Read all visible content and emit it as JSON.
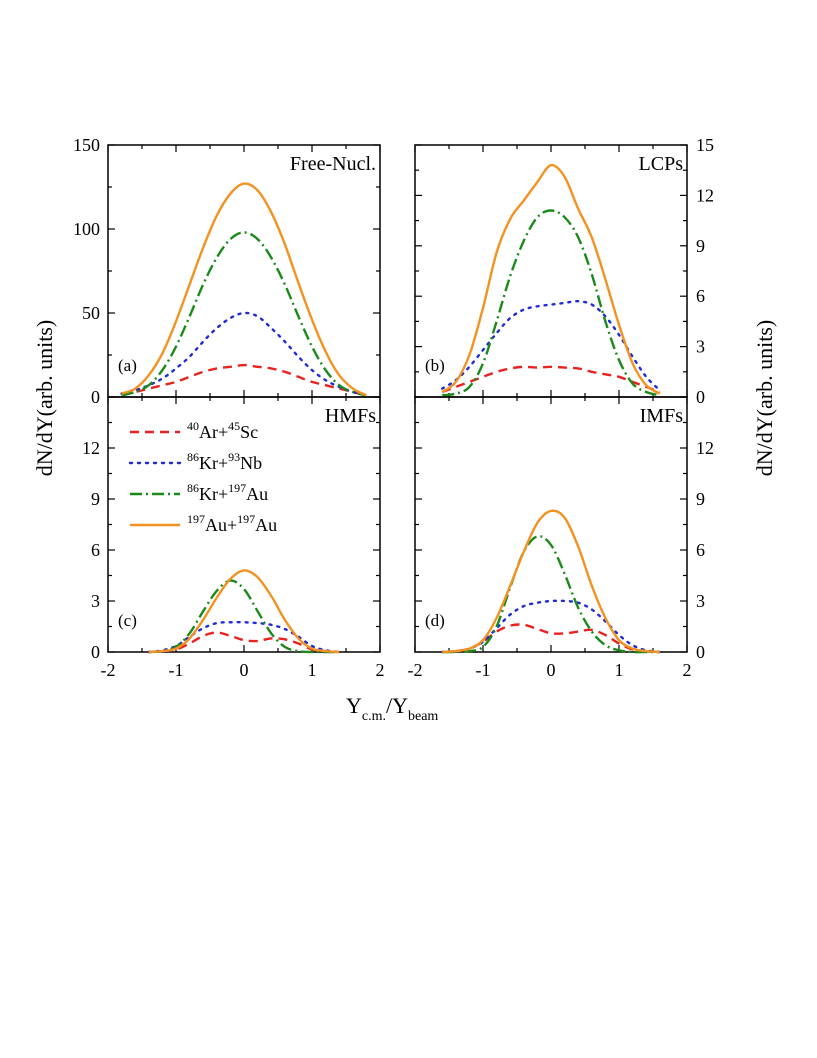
{
  "figure": {
    "xlabel_main": "Y",
    "xlabel_sub_1": "c.m.",
    "xlabel_mid": "/Y",
    "xlabel_sub_2": "beam",
    "ylabel_left": "dN/dY(arb. units)",
    "ylabel_right": "dN/dY(arb. units)"
  },
  "colors": {
    "ArSc": "#e8231f",
    "KrNb": "#1f2cd6",
    "KrAu": "#1b8a1b",
    "AuAu": "#f39221"
  },
  "legend": [
    {
      "key": "ArSc",
      "a1": "40",
      "e1": "Ar+",
      "a2": "45",
      "e2": "Sc"
    },
    {
      "key": "KrNb",
      "a1": "86",
      "e1": "Kr+",
      "a2": "93",
      "e2": "Nb"
    },
    {
      "key": "KrAu",
      "a1": "86",
      "e1": "Kr+",
      "a2": "197",
      "e2": "Au"
    },
    {
      "key": "AuAu",
      "a1": "197",
      "e1": "Au+",
      "a2": "197",
      "e2": "Au"
    }
  ],
  "chart_data": [
    {
      "type": "line",
      "title": "Free-Nucl.",
      "tag": "(a)",
      "xlim": [
        -2,
        2
      ],
      "ylim": [
        0,
        150
      ],
      "xticks": [],
      "yticks": [
        "0",
        "50",
        "100",
        "150"
      ],
      "series": [
        {
          "key": "ArSc",
          "x": [
            -1.8,
            -1.6,
            -1.4,
            -1.2,
            -1.0,
            -0.8,
            -0.6,
            -0.4,
            -0.2,
            0.0,
            0.2,
            0.4,
            0.6,
            0.8,
            1.0,
            1.2,
            1.4,
            1.6,
            1.8
          ],
          "y": [
            2,
            3,
            5,
            7,
            9,
            12,
            15,
            17,
            18,
            19,
            18,
            17,
            15,
            12,
            9,
            7,
            5,
            3,
            1
          ]
        },
        {
          "key": "KrNb",
          "x": [
            -1.8,
            -1.6,
            -1.4,
            -1.2,
            -1.0,
            -0.8,
            -0.6,
            -0.4,
            -0.2,
            0.0,
            0.2,
            0.4,
            0.6,
            0.8,
            1.0,
            1.2,
            1.4,
            1.6,
            1.8
          ],
          "y": [
            2,
            4,
            7,
            11,
            17,
            24,
            33,
            41,
            47,
            50,
            48,
            41,
            33,
            24,
            16,
            10,
            6,
            3,
            1
          ]
        },
        {
          "key": "KrAu",
          "x": [
            -1.8,
            -1.6,
            -1.4,
            -1.2,
            -1.0,
            -0.8,
            -0.6,
            -0.4,
            -0.2,
            0.0,
            0.2,
            0.4,
            0.6,
            0.8,
            1.0,
            1.2,
            1.4,
            1.6,
            1.8
          ],
          "y": [
            1,
            3,
            7,
            16,
            30,
            48,
            67,
            83,
            94,
            98,
            94,
            83,
            67,
            48,
            30,
            16,
            7,
            3,
            1
          ]
        },
        {
          "key": "AuAu",
          "x": [
            -1.8,
            -1.6,
            -1.4,
            -1.2,
            -1.0,
            -0.8,
            -0.6,
            -0.4,
            -0.2,
            0.0,
            0.2,
            0.4,
            0.6,
            0.8,
            1.0,
            1.2,
            1.4,
            1.6,
            1.8
          ],
          "y": [
            2,
            5,
            13,
            26,
            45,
            67,
            89,
            108,
            121,
            127,
            123,
            110,
            91,
            68,
            46,
            27,
            13,
            5,
            1
          ]
        }
      ]
    },
    {
      "type": "line",
      "title": "LCPs",
      "tag": "(b)",
      "xlim": [
        -2,
        2
      ],
      "ylim": [
        0,
        15
      ],
      "xticks": [],
      "yticks": [
        "0",
        "3",
        "6",
        "9",
        "12",
        "15"
      ],
      "series": [
        {
          "key": "ArSc",
          "x": [
            -1.6,
            -1.4,
            -1.2,
            -1.0,
            -0.8,
            -0.6,
            -0.4,
            -0.2,
            0.0,
            0.2,
            0.4,
            0.6,
            0.8,
            1.0,
            1.2,
            1.4,
            1.6
          ],
          "y": [
            0.3,
            0.6,
            0.9,
            1.2,
            1.5,
            1.7,
            1.8,
            1.75,
            1.8,
            1.75,
            1.7,
            1.5,
            1.35,
            1.2,
            0.9,
            0.6,
            0.3
          ]
        },
        {
          "key": "KrNb",
          "x": [
            -1.6,
            -1.4,
            -1.2,
            -1.0,
            -0.8,
            -0.6,
            -0.4,
            -0.2,
            0.0,
            0.2,
            0.4,
            0.6,
            0.8,
            1.0,
            1.2,
            1.4,
            1.6
          ],
          "y": [
            0.5,
            1.0,
            1.8,
            2.8,
            3.8,
            4.7,
            5.2,
            5.4,
            5.5,
            5.6,
            5.7,
            5.5,
            4.8,
            3.7,
            2.4,
            1.2,
            0.4
          ]
        },
        {
          "key": "KrAu",
          "x": [
            -1.6,
            -1.4,
            -1.2,
            -1.0,
            -0.8,
            -0.6,
            -0.4,
            -0.2,
            0.0,
            0.2,
            0.4,
            0.6,
            0.8,
            1.0,
            1.2,
            1.4,
            1.6
          ],
          "y": [
            0.1,
            0.2,
            0.6,
            2.0,
            4.5,
            7.2,
            9.3,
            10.7,
            11.1,
            10.7,
            9.5,
            7.3,
            4.5,
            2.2,
            0.8,
            0.3,
            0.1
          ]
        },
        {
          "key": "AuAu",
          "x": [
            -1.6,
            -1.4,
            -1.2,
            -1.0,
            -0.8,
            -0.6,
            -0.4,
            -0.2,
            0.0,
            0.2,
            0.4,
            0.6,
            0.8,
            1.0,
            1.2,
            1.4,
            1.6
          ],
          "y": [
            0.3,
            0.9,
            2.5,
            5.3,
            8.6,
            10.6,
            11.7,
            12.8,
            13.8,
            13.1,
            11.2,
            9.5,
            7.0,
            4.3,
            2.0,
            0.7,
            0.2
          ]
        }
      ]
    },
    {
      "type": "line",
      "title": "HMFs",
      "tag": "(c)",
      "xlim": [
        -2,
        2
      ],
      "ylim": [
        0,
        15
      ],
      "xticks": [
        "-2",
        "-1",
        "0",
        "1",
        "2"
      ],
      "yticks": [
        "0",
        "3",
        "6",
        "9",
        "12"
      ],
      "series": [
        {
          "key": "ArSc",
          "x": [
            -1.4,
            -1.2,
            -1.0,
            -0.8,
            -0.6,
            -0.4,
            -0.2,
            0.0,
            0.2,
            0.4,
            0.6,
            0.8,
            1.0,
            1.2,
            1.4
          ],
          "y": [
            0.0,
            0.05,
            0.15,
            0.5,
            0.95,
            1.15,
            0.95,
            0.7,
            0.65,
            0.8,
            0.75,
            0.5,
            0.15,
            0.05,
            0.0
          ]
        },
        {
          "key": "KrNb",
          "x": [
            -1.4,
            -1.2,
            -1.0,
            -0.8,
            -0.6,
            -0.4,
            -0.2,
            0.0,
            0.2,
            0.4,
            0.6,
            0.8,
            1.0,
            1.2,
            1.4
          ],
          "y": [
            0.0,
            0.1,
            0.35,
            0.9,
            1.4,
            1.7,
            1.75,
            1.75,
            1.7,
            1.6,
            1.35,
            0.9,
            0.35,
            0.1,
            0.0
          ]
        },
        {
          "key": "KrAu",
          "x": [
            -1.4,
            -1.2,
            -1.0,
            -0.8,
            -0.6,
            -0.4,
            -0.2,
            0.0,
            0.2,
            0.4,
            0.6,
            0.8,
            1.0,
            1.2,
            1.4
          ],
          "y": [
            0.0,
            0.05,
            0.3,
            1.1,
            2.4,
            3.6,
            4.2,
            3.7,
            2.4,
            1.1,
            0.3,
            0.05,
            0.0,
            0.0,
            0.0
          ]
        },
        {
          "key": "AuAu",
          "x": [
            -1.4,
            -1.2,
            -1.0,
            -0.8,
            -0.6,
            -0.4,
            -0.2,
            0.0,
            0.2,
            0.4,
            0.6,
            0.8,
            1.0,
            1.2,
            1.4
          ],
          "y": [
            0.0,
            0.05,
            0.2,
            0.8,
            1.9,
            3.2,
            4.3,
            4.8,
            4.4,
            3.3,
            1.9,
            0.8,
            0.2,
            0.05,
            0.0
          ]
        }
      ]
    },
    {
      "type": "line",
      "title": "IMFs",
      "tag": "(d)",
      "xlim": [
        -2,
        2
      ],
      "ylim": [
        0,
        15
      ],
      "xticks": [
        "-2",
        "-1",
        "0",
        "1",
        "2"
      ],
      "yticks": [
        "0",
        "3",
        "6",
        "9",
        "12"
      ],
      "series": [
        {
          "key": "ArSc",
          "x": [
            -1.6,
            -1.4,
            -1.2,
            -1.0,
            -0.8,
            -0.6,
            -0.4,
            -0.2,
            0.0,
            0.2,
            0.4,
            0.6,
            0.8,
            1.0,
            1.2,
            1.4,
            1.6
          ],
          "y": [
            0.0,
            0.05,
            0.2,
            0.6,
            1.2,
            1.55,
            1.6,
            1.35,
            1.1,
            1.1,
            1.2,
            1.3,
            1.0,
            0.5,
            0.15,
            0.05,
            0.0
          ]
        },
        {
          "key": "KrNb",
          "x": [
            -1.6,
            -1.4,
            -1.2,
            -1.0,
            -0.8,
            -0.6,
            -0.4,
            -0.2,
            0.0,
            0.2,
            0.4,
            0.6,
            0.8,
            1.0,
            1.2,
            1.4,
            1.6
          ],
          "y": [
            0.0,
            0.05,
            0.2,
            0.6,
            1.4,
            2.2,
            2.7,
            2.9,
            3.0,
            3.0,
            2.9,
            2.5,
            1.8,
            1.0,
            0.4,
            0.1,
            0.0
          ]
        },
        {
          "key": "KrAu",
          "x": [
            -1.6,
            -1.4,
            -1.2,
            -1.0,
            -0.8,
            -0.6,
            -0.4,
            -0.2,
            0.0,
            0.2,
            0.4,
            0.6,
            0.8,
            1.0,
            1.2,
            1.4,
            1.6
          ],
          "y": [
            0.0,
            0.0,
            0.05,
            0.3,
            1.5,
            3.8,
            5.9,
            6.8,
            6.3,
            4.6,
            2.6,
            1.2,
            0.4,
            0.1,
            0.0,
            0.0,
            0.0
          ]
        },
        {
          "key": "AuAu",
          "x": [
            -1.6,
            -1.4,
            -1.2,
            -1.0,
            -0.8,
            -0.6,
            -0.4,
            -0.2,
            0.0,
            0.2,
            0.4,
            0.6,
            0.8,
            1.0,
            1.2,
            1.4,
            1.6
          ],
          "y": [
            0.0,
            0.05,
            0.2,
            0.7,
            2.0,
            3.9,
            5.9,
            7.6,
            8.3,
            7.9,
            6.2,
            3.9,
            2.0,
            0.7,
            0.2,
            0.05,
            0.0
          ]
        }
      ]
    }
  ]
}
